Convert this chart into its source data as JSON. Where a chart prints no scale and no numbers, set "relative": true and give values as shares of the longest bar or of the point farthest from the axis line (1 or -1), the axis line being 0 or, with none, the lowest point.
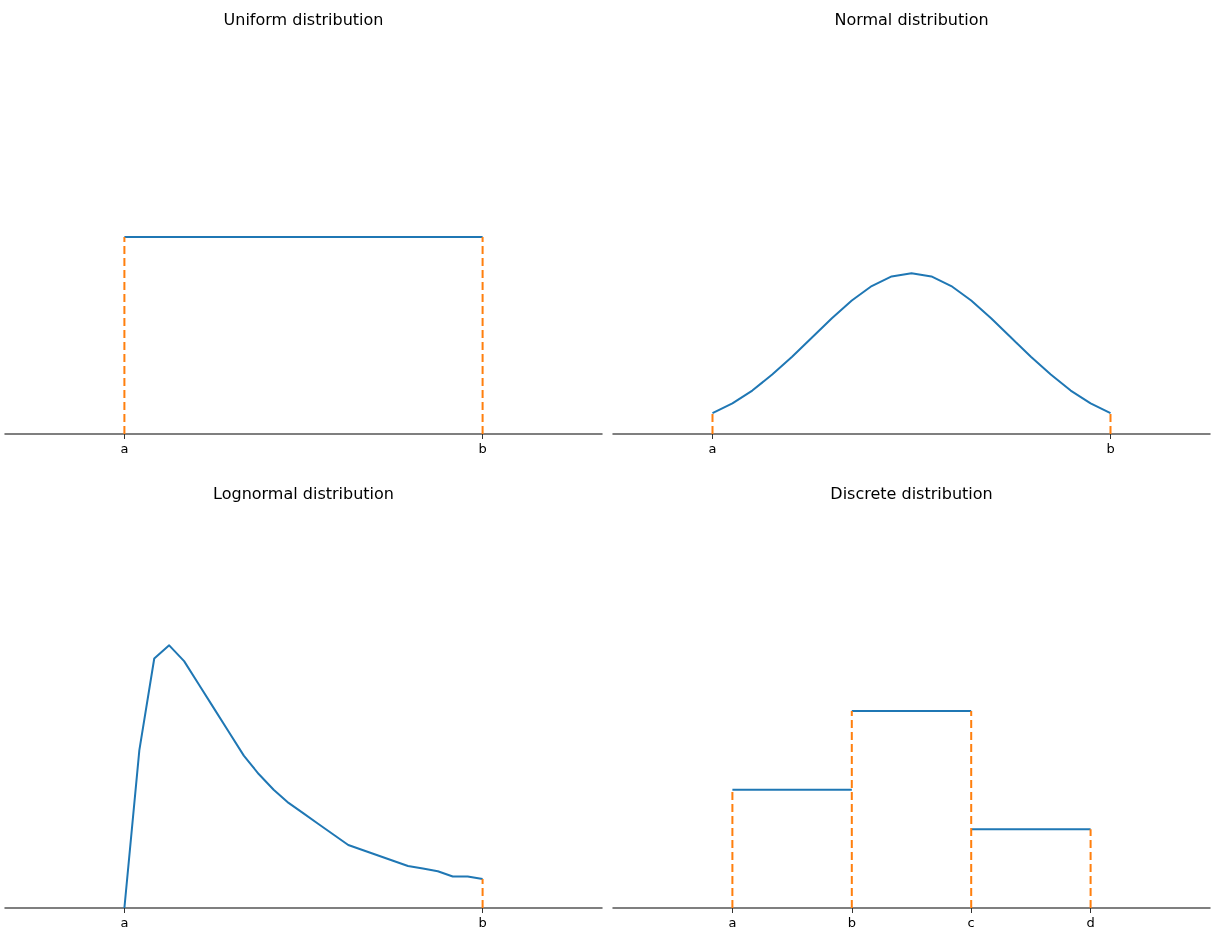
{
  "chart_data": [
    {
      "type": "line",
      "title": "Uniform distribution",
      "relative": true,
      "grid": false,
      "categories": [
        null,
        null,
        null,
        null,
        null,
        null,
        null,
        null,
        "a",
        null,
        null,
        null,
        null,
        null,
        null,
        null,
        null,
        null,
        null,
        null,
        null,
        null,
        null,
        null,
        null,
        null,
        null,
        null,
        null,
        null,
        null,
        null,
        "b",
        null,
        null,
        null,
        null,
        null,
        null,
        null,
        null
      ],
      "series": [
        {
          "color": "#1f77b4",
          "line_style": "solid",
          "x": [
            "a",
            "b"
          ],
          "values": [
            1,
            1
          ]
        },
        {
          "color": "#ff7f0e",
          "line_style": "dashed",
          "x": [
            "a",
            "a"
          ],
          "values": [
            0,
            1
          ]
        },
        {
          "color": "#ff7f0e",
          "line_style": "dashed",
          "x": [
            "b",
            "b"
          ],
          "values": [
            0,
            1
          ]
        }
      ]
    },
    {
      "type": "line",
      "title": "Normal distribution",
      "relative": true,
      "grid": false,
      "categories": [
        null,
        null,
        null,
        null,
        null,
        "a",
        null,
        null,
        null,
        null,
        null,
        null,
        null,
        null,
        null,
        null,
        null,
        null,
        null,
        null,
        null,
        null,
        null,
        null,
        null,
        "b",
        null,
        null,
        null,
        null,
        null
      ],
      "series": [
        {
          "color": "#1f77b4",
          "line_style": "solid",
          "values": [
            null,
            null,
            null,
            null,
            null,
            0.13,
            0.19,
            0.27,
            0.37,
            0.48,
            0.6,
            0.72,
            0.83,
            0.92,
            0.98,
            1,
            0.98,
            0.92,
            0.83,
            0.72,
            0.6,
            0.48,
            0.37,
            0.27,
            0.19,
            0.13,
            null,
            null,
            null,
            null,
            null
          ]
        },
        {
          "color": "#ff7f0e",
          "line_style": "dashed",
          "x": [
            "a",
            "a"
          ],
          "values": [
            0,
            0.13
          ]
        },
        {
          "color": "#ff7f0e",
          "line_style": "dashed",
          "x": [
            "b",
            "b"
          ],
          "values": [
            0,
            0.13
          ]
        }
      ]
    },
    {
      "type": "line",
      "title": "Lognormal distribution",
      "relative": true,
      "grid": false,
      "categories": [
        null,
        null,
        null,
        null,
        null,
        null,
        null,
        null,
        "a",
        null,
        null,
        null,
        null,
        null,
        null,
        null,
        null,
        null,
        null,
        null,
        null,
        null,
        null,
        null,
        null,
        null,
        null,
        null,
        null,
        null,
        null,
        null,
        "b",
        null,
        null,
        null,
        null,
        null,
        null,
        null,
        null
      ],
      "series": [
        {
          "color": "#1f77b4",
          "line_style": "solid",
          "values": [
            null,
            null,
            null,
            null,
            null,
            null,
            null,
            null,
            0,
            0.6,
            0.95,
            1,
            0.94,
            0.85,
            0.76,
            0.67,
            0.58,
            0.51,
            0.45,
            0.4,
            0.36,
            0.32,
            0.28,
            0.24,
            0.22,
            0.2,
            0.18,
            0.16,
            0.15,
            0.14,
            0.12,
            0.12,
            0.11,
            null,
            null,
            null,
            null,
            null,
            null,
            null,
            null
          ]
        },
        {
          "color": "#ff7f0e",
          "line_style": "dashed",
          "x": [
            "b",
            "b"
          ],
          "values": [
            0,
            0.11
          ]
        }
      ]
    },
    {
      "type": "line",
      "title": "Discrete distribution",
      "relative": true,
      "grid": false,
      "categories": [
        null,
        null,
        "a",
        null,
        "b",
        null,
        "c",
        null,
        "d",
        null,
        null
      ],
      "series": [
        {
          "color": "#1f77b4",
          "line_style": "solid",
          "x": [
            "a",
            "b"
          ],
          "values": [
            0.6,
            0.6
          ]
        },
        {
          "color": "#1f77b4",
          "line_style": "solid",
          "x": [
            "b",
            "c"
          ],
          "values": [
            1,
            1
          ]
        },
        {
          "color": "#1f77b4",
          "line_style": "solid",
          "x": [
            "c",
            "d"
          ],
          "values": [
            0.4,
            0.4
          ]
        },
        {
          "color": "#ff7f0e",
          "line_style": "dashed",
          "x": [
            "a",
            "a"
          ],
          "values": [
            0,
            0.6
          ]
        },
        {
          "color": "#ff7f0e",
          "line_style": "dashed",
          "x": [
            "b",
            "b"
          ],
          "values": [
            0,
            1
          ]
        },
        {
          "color": "#ff7f0e",
          "line_style": "dashed",
          "x": [
            "c",
            "c"
          ],
          "values": [
            0,
            1
          ]
        },
        {
          "color": "#ff7f0e",
          "line_style": "dashed",
          "x": [
            "d",
            "d"
          ],
          "values": [
            0,
            0.4
          ]
        }
      ]
    }
  ]
}
